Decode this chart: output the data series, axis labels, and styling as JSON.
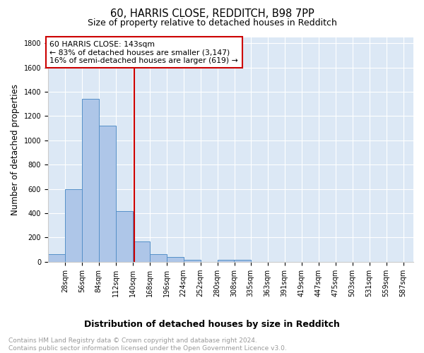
{
  "title": "60, HARRIS CLOSE, REDDITCH, B98 7PP",
  "subtitle": "Size of property relative to detached houses in Redditch",
  "xlabel": "Distribution of detached houses by size in Redditch",
  "ylabel": "Number of detached properties",
  "bin_labels": [
    "28sqm",
    "56sqm",
    "84sqm",
    "112sqm",
    "140sqm",
    "168sqm",
    "196sqm",
    "224sqm",
    "252sqm",
    "280sqm",
    "308sqm",
    "335sqm",
    "363sqm",
    "391sqm",
    "419sqm",
    "447sqm",
    "475sqm",
    "503sqm",
    "531sqm",
    "559sqm",
    "587sqm"
  ],
  "bar_heights": [
    60,
    600,
    1340,
    1120,
    420,
    170,
    65,
    38,
    18,
    0,
    18,
    18,
    0,
    0,
    0,
    0,
    0,
    0,
    0,
    0,
    0
  ],
  "bar_color": "#aec6e8",
  "bar_edge_color": "#5590c8",
  "background_color": "#dce8f5",
  "grid_color": "#ffffff",
  "vline_x": 143,
  "vline_color": "#cc0000",
  "annotation_text": "60 HARRIS CLOSE: 143sqm\n← 83% of detached houses are smaller (3,147)\n16% of semi-detached houses are larger (619) →",
  "annotation_box_color": "#ffffff",
  "annotation_box_edge": "#cc0000",
  "ylim": [
    0,
    1850
  ],
  "yticks": [
    0,
    200,
    400,
    600,
    800,
    1000,
    1200,
    1400,
    1600,
    1800
  ],
  "footnote": "Contains HM Land Registry data © Crown copyright and database right 2024.\nContains public sector information licensed under the Open Government Licence v3.0.",
  "bin_width": 28,
  "title_fontsize": 10.5,
  "subtitle_fontsize": 9,
  "ylabel_fontsize": 8.5,
  "xlabel_fontsize": 9,
  "tick_fontsize": 7,
  "footnote_fontsize": 6.5,
  "footnote_color": "#999999"
}
